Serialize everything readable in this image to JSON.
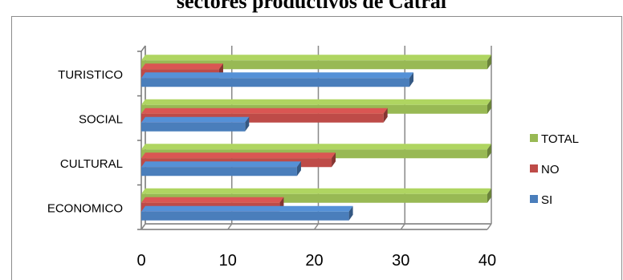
{
  "title": "sectores productivos de Catral",
  "chart_data": {
    "type": "bar",
    "orientation": "horizontal",
    "style": "3d",
    "categories": [
      "ECONOMICO",
      "CULTURAL",
      "SOCIAL",
      "TURISTICO"
    ],
    "series": [
      {
        "name": "SI",
        "color": "#4a7ebb",
        "values": [
          24,
          18,
          12,
          31
        ]
      },
      {
        "name": "NO",
        "color": "#be4b48",
        "values": [
          16,
          22,
          28,
          9
        ]
      },
      {
        "name": "TOTAL",
        "color": "#98b954",
        "values": [
          40,
          40,
          40,
          40
        ]
      }
    ],
    "xlim": [
      0,
      40
    ],
    "xticks": [
      0,
      10,
      20,
      30,
      40
    ],
    "grid": true,
    "legend": "right"
  }
}
